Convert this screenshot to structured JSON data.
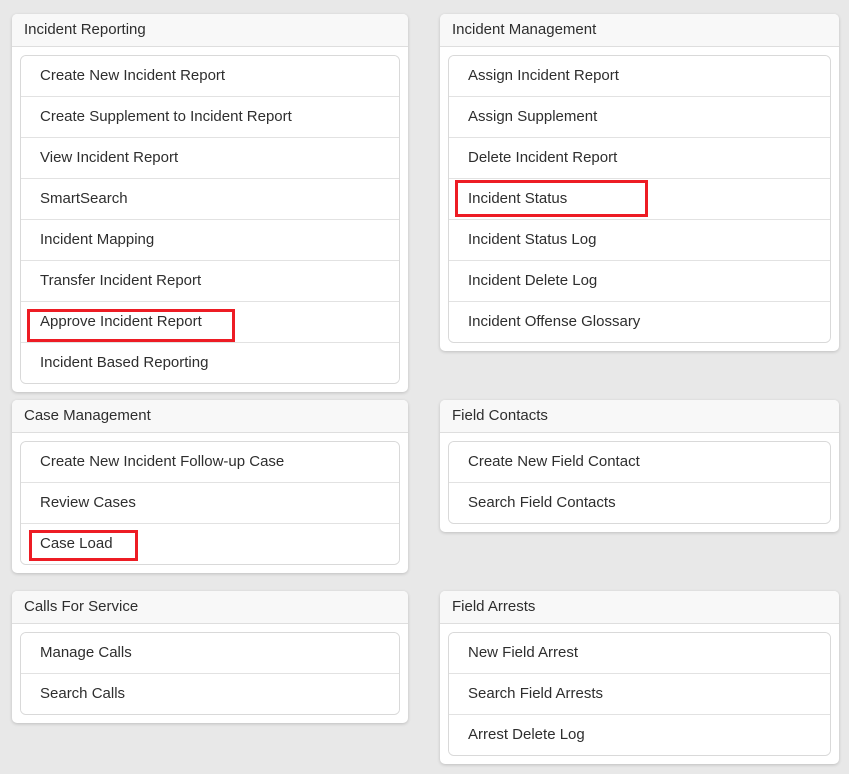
{
  "colors": {
    "page_bg": "#e8e8e8",
    "red": "#ed1c24"
  },
  "highlighted_items": [
    "Approve Incident Report",
    "Incident Status",
    "Case Load"
  ],
  "panels": [
    {
      "title": "Incident Reporting",
      "items": [
        "Create New Incident Report",
        "Create Supplement to Incident Report",
        "View Incident Report",
        "SmartSearch",
        "Incident Mapping",
        "Transfer Incident Report",
        "Approve Incident Report",
        "Incident Based Reporting"
      ]
    },
    {
      "title": "Incident Management",
      "items": [
        "Assign Incident Report",
        "Assign Supplement",
        "Delete Incident Report",
        "Incident Status",
        "Incident Status Log",
        "Incident Delete Log",
        "Incident Offense Glossary"
      ]
    },
    {
      "title": "Case Management",
      "items": [
        "Create New Incident Follow-up Case",
        "Review Cases",
        "Case Load"
      ]
    },
    {
      "title": "Field Contacts",
      "items": [
        "Create New Field Contact",
        "Search Field Contacts"
      ]
    },
    {
      "title": "Calls For Service",
      "items": [
        "Manage Calls",
        "Search Calls"
      ]
    },
    {
      "title": "Field Arrests",
      "items": [
        "New Field Arrest",
        "Search Field Arrests",
        "Arrest Delete Log"
      ]
    }
  ]
}
